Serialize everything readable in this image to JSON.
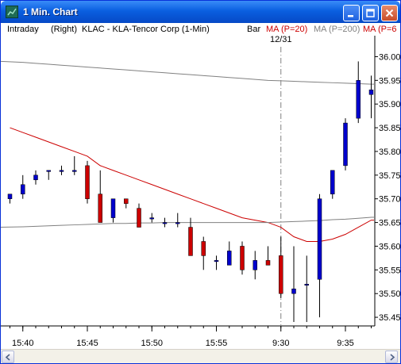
{
  "window": {
    "title": "1 Min. Chart",
    "icon": "chart-app-icon",
    "controls": [
      "minimize-icon",
      "maximize-icon",
      "close-icon"
    ]
  },
  "infobar": {
    "timeframe": "Intraday",
    "axis_side": "(Right)",
    "symbol": "KLAC - KLA-Tencor Corp  (1-Min)",
    "style": "Bar",
    "ma20": "MA (P=20)",
    "ma200": "MA (P=200)",
    "ma_extra": "MA (P=6"
  },
  "colors": {
    "down_candle": "#cc0000",
    "up_candle": "#0000cc",
    "ma20": "#cc0000",
    "ma200": "#808080",
    "ma20_label": "#cc0000",
    "ma200_label": "#808080",
    "session_divider": "#808080"
  },
  "chart_data": {
    "type": "candlestick",
    "ylim": [
      35.42,
      36.02
    ],
    "y_ticks": [
      "36.00",
      "35.95",
      "35.90",
      "35.85",
      "35.80",
      "35.75",
      "35.70",
      "35.65",
      "35.60",
      "35.55",
      "35.50",
      "35.45"
    ],
    "x_tick_labels": [
      {
        "label": "15:40",
        "bar": 1
      },
      {
        "label": "15:45",
        "bar": 6
      },
      {
        "label": "15:50",
        "bar": 11
      },
      {
        "label": "15:55",
        "bar": 16
      },
      {
        "label": "9:30",
        "bar": 21
      },
      {
        "label": "9:35",
        "bar": 26
      }
    ],
    "session_divider": {
      "label": "12/31",
      "bar": 21
    },
    "bars": [
      {
        "o": 35.7,
        "h": 35.71,
        "l": 35.69,
        "c": 35.71
      },
      {
        "o": 35.71,
        "h": 35.75,
        "l": 35.7,
        "c": 35.73
      },
      {
        "o": 35.74,
        "h": 35.76,
        "l": 35.73,
        "c": 35.75
      },
      {
        "o": 35.76,
        "h": 35.76,
        "l": 35.74,
        "c": 35.76
      },
      {
        "o": 35.76,
        "h": 35.77,
        "l": 35.75,
        "c": 35.76
      },
      {
        "o": 35.76,
        "h": 35.79,
        "l": 35.75,
        "c": 35.76
      },
      {
        "o": 35.77,
        "h": 35.78,
        "l": 35.69,
        "c": 35.7
      },
      {
        "o": 35.71,
        "h": 35.76,
        "l": 35.65,
        "c": 35.65
      },
      {
        "o": 35.66,
        "h": 35.7,
        "l": 35.65,
        "c": 35.7
      },
      {
        "o": 35.7,
        "h": 35.7,
        "l": 35.68,
        "c": 35.69
      },
      {
        "o": 35.68,
        "h": 35.69,
        "l": 35.64,
        "c": 35.64
      },
      {
        "o": 35.66,
        "h": 35.67,
        "l": 35.65,
        "c": 35.66
      },
      {
        "o": 35.65,
        "h": 35.66,
        "l": 35.64,
        "c": 35.65
      },
      {
        "o": 35.65,
        "h": 35.67,
        "l": 35.64,
        "c": 35.65
      },
      {
        "o": 35.64,
        "h": 35.66,
        "l": 35.58,
        "c": 35.58
      },
      {
        "o": 35.61,
        "h": 35.62,
        "l": 35.55,
        "c": 35.58
      },
      {
        "o": 35.57,
        "h": 35.58,
        "l": 35.55,
        "c": 35.57
      },
      {
        "o": 35.56,
        "h": 35.61,
        "l": 35.56,
        "c": 35.59
      },
      {
        "o": 35.6,
        "h": 35.61,
        "l": 35.54,
        "c": 35.55
      },
      {
        "o": 35.55,
        "h": 35.59,
        "l": 35.53,
        "c": 35.57
      },
      {
        "o": 35.57,
        "h": 35.6,
        "l": 35.56,
        "c": 35.56
      },
      {
        "o": 35.58,
        "h": 35.62,
        "l": 35.49,
        "c": 35.5
      },
      {
        "o": 35.5,
        "h": 35.6,
        "l": 35.44,
        "c": 35.51
      },
      {
        "o": 35.52,
        "h": 35.58,
        "l": 35.44,
        "c": 35.52
      },
      {
        "o": 35.53,
        "h": 35.71,
        "l": 35.45,
        "c": 35.7
      },
      {
        "o": 35.71,
        "h": 35.76,
        "l": 35.7,
        "c": 35.76
      },
      {
        "o": 35.77,
        "h": 35.87,
        "l": 35.76,
        "c": 35.86
      },
      {
        "o": 35.87,
        "h": 35.99,
        "l": 35.86,
        "c": 35.95
      },
      {
        "o": 35.92,
        "h": 35.96,
        "l": 35.87,
        "c": 35.93
      }
    ],
    "series": [
      {
        "name": "MA (P=20)",
        "values": [
          35.85,
          35.84,
          35.83,
          35.82,
          35.81,
          35.8,
          35.79,
          35.77,
          35.76,
          35.75,
          35.74,
          35.73,
          35.72,
          35.71,
          35.7,
          35.69,
          35.68,
          35.67,
          35.66,
          35.655,
          35.65,
          35.64,
          35.62,
          35.61,
          35.61,
          35.615,
          35.625,
          35.64,
          35.655
        ]
      },
      {
        "name": "MA (P=200)",
        "values": [
          35.99,
          35.988,
          35.986,
          35.984,
          35.982,
          35.98,
          35.978,
          35.976,
          35.974,
          35.972,
          35.97,
          35.968,
          35.966,
          35.964,
          35.962,
          35.96,
          35.958,
          35.956,
          35.954,
          35.952,
          35.95,
          35.949,
          35.948,
          35.947,
          35.946,
          35.945,
          35.944,
          35.943,
          35.942
        ]
      },
      {
        "name": "MA (P=6",
        "values": [
          35.64,
          35.641,
          35.642,
          35.643,
          35.644,
          35.645,
          35.646,
          35.647,
          35.648,
          35.648,
          35.649,
          35.649,
          35.65,
          35.65,
          35.65,
          35.65,
          35.65,
          35.65,
          35.65,
          35.65,
          35.65,
          35.651,
          35.652,
          35.653,
          35.654,
          35.656,
          35.657,
          35.659,
          35.661
        ]
      }
    ]
  }
}
